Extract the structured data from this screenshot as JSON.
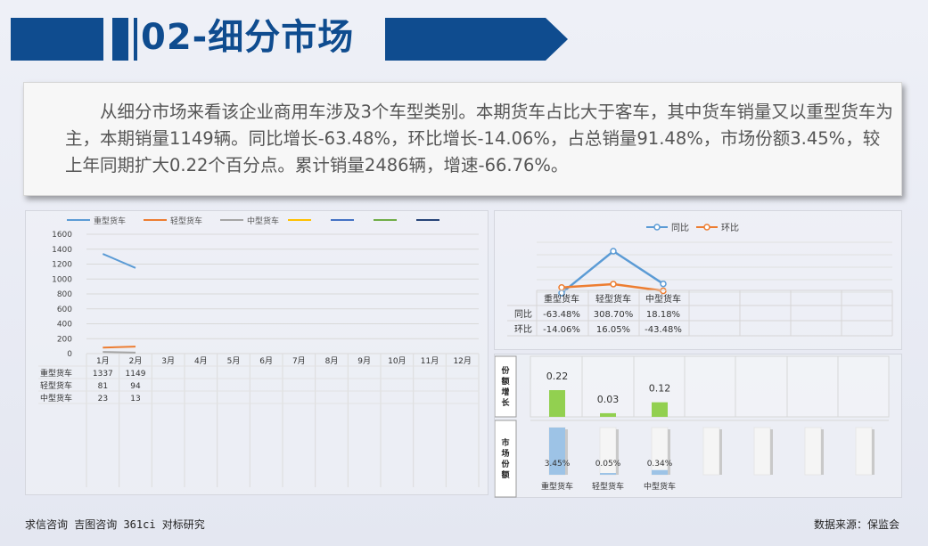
{
  "header": {
    "title": "02-细分市场"
  },
  "summary": {
    "text": "从细分市场来看该企业商用车涉及3个车型类别。本期货车占比大于客车，其中货车销量又以重型货车为主，本期销量1149辆。同比增长-63.48%，环比增长-14.06%，占总销量91.48%，市场份额3.45%，较上年同期扩大0.22个百分点。累计销量2486辆，增速-66.76%。"
  },
  "chart_data": [
    {
      "type": "line",
      "title": "",
      "categories": [
        "1月",
        "2月",
        "3月",
        "4月",
        "5月",
        "6月",
        "7月",
        "8月",
        "9月",
        "10月",
        "11月",
        "12月"
      ],
      "ylim": [
        0,
        1600
      ],
      "yticks": [
        "0",
        "200",
        "400",
        "600",
        "800",
        "1000",
        "1200",
        "1400",
        "1600"
      ],
      "legend_position": "top",
      "grid": true,
      "series": [
        {
          "name": "重型货车",
          "values": [
            1337,
            1149,
            null,
            null,
            null,
            null,
            null,
            null,
            null,
            null,
            null,
            null
          ],
          "value_labels": [
            "1337",
            "1149"
          ],
          "color": "#5b9bd5"
        },
        {
          "name": "轻型货车",
          "values": [
            81,
            94,
            null,
            null,
            null,
            null,
            null,
            null,
            null,
            null,
            null,
            null
          ],
          "value_labels": [
            "81",
            "94"
          ],
          "color": "#ed7d31"
        },
        {
          "name": "中型货车",
          "values": [
            23,
            13,
            null,
            null,
            null,
            null,
            null,
            null,
            null,
            null,
            null,
            null
          ],
          "value_labels": [
            "23",
            "13"
          ],
          "color": "#a5a5a5"
        }
      ],
      "extra_legend_colors": [
        "#ffc000",
        "#4472c4",
        "#70ad47",
        "#264478"
      ]
    },
    {
      "type": "line",
      "title": "",
      "categories": [
        "重型货车",
        "轻型货车",
        "中型货车"
      ],
      "legend_position": "top",
      "series": [
        {
          "name": "同比",
          "values": [
            -63.48,
            308.7,
            18.18
          ],
          "labels": [
            "-63.48%",
            "308.70%",
            "18.18%"
          ],
          "color": "#5b9bd5"
        },
        {
          "name": "环比",
          "values": [
            -14.06,
            16.05,
            -43.48
          ],
          "labels": [
            "-14.06%",
            "16.05%",
            "-43.48%"
          ],
          "color": "#ed7d31"
        }
      ]
    },
    {
      "type": "bar",
      "title": "",
      "row_label": "份额增长",
      "categories": [
        "重型货车",
        "轻型货车",
        "中型货车"
      ],
      "values": [
        0.22,
        0.03,
        0.12
      ],
      "labels": [
        "0.22",
        "0.03",
        "0.12"
      ],
      "color": "#92d050"
    },
    {
      "type": "bar",
      "title": "",
      "row_label": "市场份额",
      "categories": [
        "重型货车",
        "轻型货车",
        "中型货车"
      ],
      "values": [
        3.45,
        0.05,
        0.34
      ],
      "labels": [
        "3.45%",
        "0.05%",
        "0.34%"
      ],
      "color": "#9dc3e6",
      "empty_slots": 4
    }
  ],
  "footer": {
    "left": "求信咨询 吉图咨询 361ci 对标研究",
    "right": "数据来源：保监会"
  }
}
